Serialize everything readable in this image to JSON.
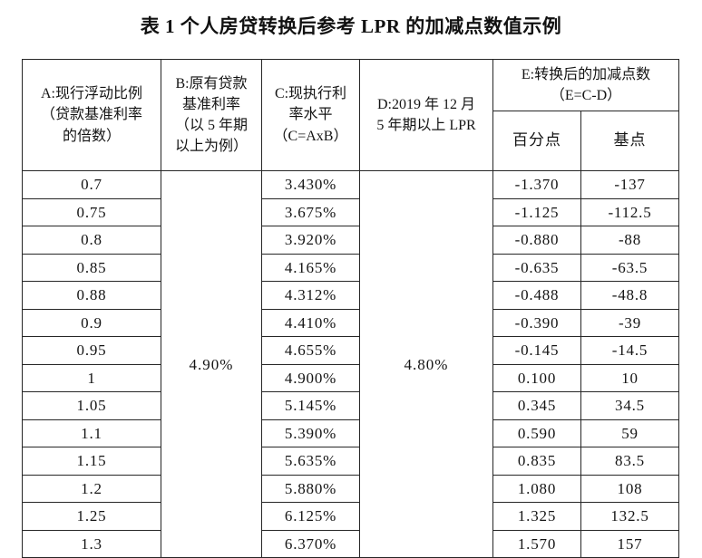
{
  "title": "表 1 个人房贷转换后参考 LPR 的加减点数值示例",
  "table": {
    "headers": {
      "a": "A:现行浮动比例\n（贷款基准利率\n的倍数）",
      "b": "B:原有贷款\n基准利率\n（以 5 年期\n以上为例）",
      "c": "C:现执行利\n率水平\n（C=AxB）",
      "d": "D:2019 年 12 月\n5 年期以上 LPR",
      "e": "E:转换后的加减点数\n（E=C-D）",
      "e_sub_pct": "百分点",
      "e_sub_bp": "基点"
    },
    "merged_b_value": "4.90%",
    "merged_d_value": "4.80%",
    "rows": [
      {
        "a": "0.7",
        "c": "3.430%",
        "e1": "-1.370",
        "e2": "-137"
      },
      {
        "a": "0.75",
        "c": "3.675%",
        "e1": "-1.125",
        "e2": "-112.5"
      },
      {
        "a": "0.8",
        "c": "3.920%",
        "e1": "-0.880",
        "e2": "-88"
      },
      {
        "a": "0.85",
        "c": "4.165%",
        "e1": "-0.635",
        "e2": "-63.5"
      },
      {
        "a": "0.88",
        "c": "4.312%",
        "e1": "-0.488",
        "e2": "-48.8"
      },
      {
        "a": "0.9",
        "c": "4.410%",
        "e1": "-0.390",
        "e2": "-39"
      },
      {
        "a": "0.95",
        "c": "4.655%",
        "e1": "-0.145",
        "e2": "-14.5"
      },
      {
        "a": "1",
        "c": "4.900%",
        "e1": "0.100",
        "e2": "10"
      },
      {
        "a": "1.05",
        "c": "5.145%",
        "e1": "0.345",
        "e2": "34.5"
      },
      {
        "a": "1.1",
        "c": "5.390%",
        "e1": "0.590",
        "e2": "59"
      },
      {
        "a": "1.15",
        "c": "5.635%",
        "e1": "0.835",
        "e2": "83.5"
      },
      {
        "a": "1.2",
        "c": "5.880%",
        "e1": "1.080",
        "e2": "108"
      },
      {
        "a": "1.25",
        "c": "6.125%",
        "e1": "1.325",
        "e2": "132.5"
      },
      {
        "a": "1.3",
        "c": "6.370%",
        "e1": "1.570",
        "e2": "157"
      }
    ]
  }
}
